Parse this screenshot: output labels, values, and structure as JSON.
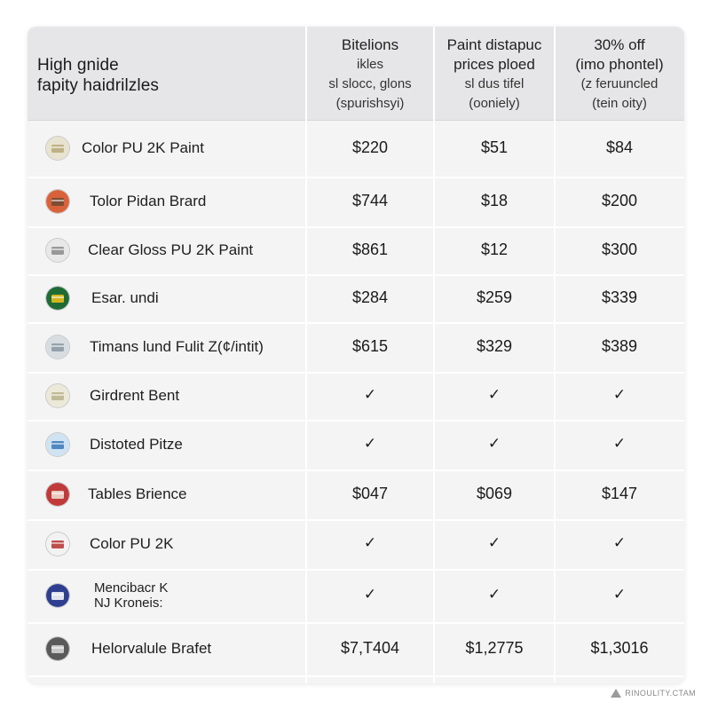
{
  "header": {
    "title_line1": "High gnide",
    "title_line2": "fapity haidrilzles",
    "columns": [
      {
        "line1": "Bitelions",
        "line2": "ikles",
        "line3": "sl slocc, glons",
        "line4": "(spurishsyi)"
      },
      {
        "line1": "Paint distapuc",
        "line2": "prices ploed",
        "line3": "sl dus tifel",
        "line4": "(ooniely)"
      },
      {
        "line1": "30% off",
        "line2": "(imo phontel)",
        "line3": "(z feruuncled",
        "line4": "(tein oity)"
      }
    ]
  },
  "rows": [
    {
      "name": "Color PU 2K Paint",
      "icon": "paint-can-icon",
      "c1": "$220",
      "c2": "$51",
      "c3": "$84"
    },
    {
      "name": "Tolor Pidan Brard",
      "icon": "paint-can-icon",
      "c1": "$744",
      "c2": "$18",
      "c3": "$200"
    },
    {
      "name": "Clear Gloss PU 2K Paint",
      "icon": "paint-can-icon",
      "c1": "$861",
      "c2": "$12",
      "c3": "$300"
    },
    {
      "name": "Esar. undi",
      "icon": "paint-can-icon",
      "c1": "$284",
      "c2": "$259",
      "c3": "$339"
    },
    {
      "name": "Timans lund Fulit Z(¢/intit)",
      "icon": "paint-can-icon",
      "c1": "$615",
      "c2": "$329",
      "c3": "$389"
    },
    {
      "name": "Girdrent Bent",
      "icon": "paint-can-icon",
      "c1": "✓",
      "c2": "✓",
      "c3": "✓"
    },
    {
      "name": "Distoted Pitze",
      "icon": "paint-can-icon",
      "c1": "✓",
      "c2": "✓",
      "c3": "✓"
    },
    {
      "name": "Tables Brience",
      "icon": "paint-can-icon",
      "c1": "$047",
      "c2": "$069",
      "c3": "$147"
    },
    {
      "name": "Color PU 2K",
      "icon": "paint-can-icon",
      "c1": "✓",
      "c2": "✓",
      "c3": "✓"
    },
    {
      "name_line1": "Mencibacr K",
      "name_line2": "NJ Kroneis:",
      "icon": "paint-can-icon",
      "c1": "✓",
      "c2": "✓",
      "c3": "✓"
    },
    {
      "name": "Helorvalule Brafet",
      "icon": "paint-can-icon",
      "c1": "$7,T404",
      "c2": "$1,2775",
      "c3": "$1,3016"
    }
  ],
  "watermark": "RINOULITY.CTAM",
  "colors": {
    "card_bg": "#f4f4f5",
    "header_bg": "#e6e6e8",
    "separator": "#ffffff",
    "text": "#1e1e1e"
  }
}
